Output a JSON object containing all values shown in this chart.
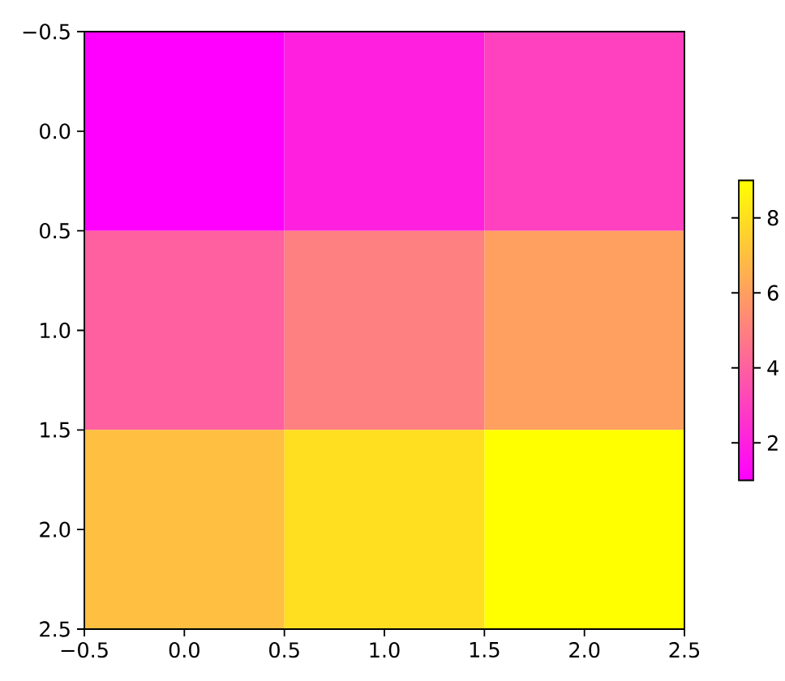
{
  "chart_data": {
    "type": "heatmap",
    "cells": [
      [
        1,
        2,
        3
      ],
      [
        4,
        5,
        6
      ],
      [
        7,
        8,
        9
      ]
    ],
    "xlim": [
      -0.5,
      2.5
    ],
    "ylim": [
      2.5,
      -0.5
    ],
    "xticks": [
      {
        "value": -0.5,
        "label": "−0.5"
      },
      {
        "value": 0,
        "label": "0.0"
      },
      0.5,
      {
        "value": 1,
        "label": "1.0"
      },
      1.5,
      {
        "value": 2,
        "label": "2.0"
      },
      2.5
    ],
    "yticks": [
      {
        "value": -0.5,
        "label": "−0.5"
      },
      {
        "value": 0,
        "label": "0.0"
      },
      0.5,
      {
        "value": 1,
        "label": "1.0"
      },
      1.5,
      {
        "value": 2,
        "label": "2.0"
      },
      2.5
    ],
    "clim": [
      1,
      9
    ],
    "cticks": [
      2,
      4,
      6,
      8
    ]
  }
}
